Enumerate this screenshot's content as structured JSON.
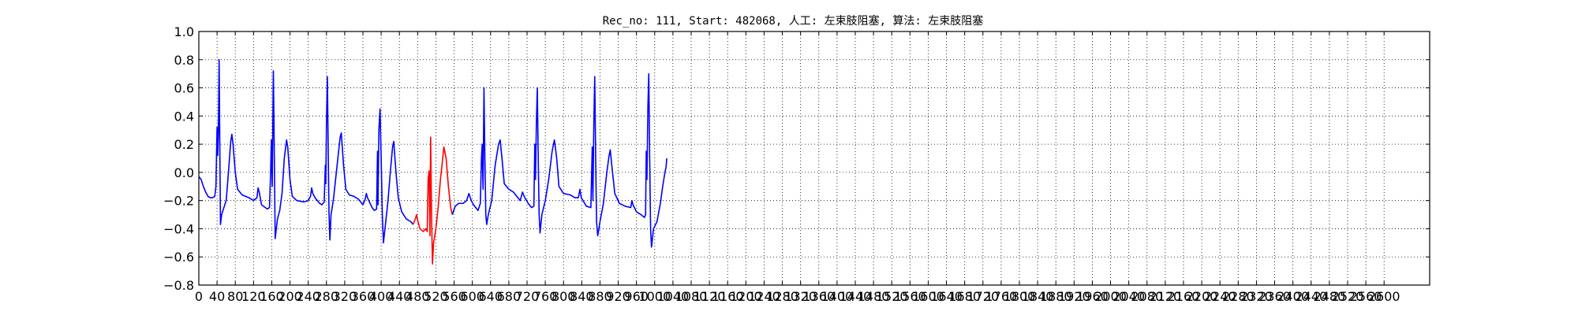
{
  "chart_data": {
    "type": "line",
    "title": "Rec_no: 111, Start: 482068, 人工: 左束肢阻塞, 算法: 左束肢阻塞",
    "xlabel": "",
    "ylabel": "",
    "xlim": [
      0,
      5400
    ],
    "ylim": [
      -0.8,
      1.0
    ],
    "grid": true,
    "yticks": [
      "1.0",
      "0.8",
      "0.6",
      "0.4",
      "0.2",
      "0.0",
      "−0.2",
      "−0.4",
      "−0.6",
      "−0.8"
    ],
    "xticks": [
      "0",
      "40",
      "80",
      "120",
      "160",
      "200",
      "240",
      "280",
      "320",
      "360",
      "400",
      "440",
      "480",
      "520",
      "560",
      "600",
      "640",
      "680",
      "720",
      "760",
      "800",
      "840",
      "880",
      "920",
      "960",
      "1000",
      "1040",
      "1080",
      "1120",
      "1160",
      "1200",
      "1240",
      "1280",
      "1320",
      "1360",
      "1400",
      "1440",
      "1480",
      "1520",
      "1560",
      "1600",
      "1640",
      "1680",
      "1720",
      "1760",
      "1800",
      "1840",
      "1880",
      "1920",
      "1960",
      "2000",
      "2040",
      "2080",
      "2120",
      "2160",
      "2200",
      "2240",
      "2280",
      "2320",
      "2360",
      "2400",
      "2440",
      "2480",
      "2520",
      "2560",
      "2600"
    ],
    "colors": {
      "signal": "#0000ff",
      "highlight": "#ff0000"
    },
    "series": [
      {
        "values": [
          [
            0,
            -0.03
          ],
          [
            10,
            -0.05
          ],
          [
            20,
            -0.1
          ],
          [
            30,
            -0.14
          ],
          [
            40,
            -0.17
          ],
          [
            50,
            -0.18
          ],
          [
            60,
            -0.18
          ],
          [
            70,
            -0.17
          ],
          [
            75,
            -0.1
          ],
          [
            80,
            0.32
          ],
          [
            83,
            0.12
          ],
          [
            86,
            0.3
          ],
          [
            89,
            0.8
          ],
          [
            92,
            0.2
          ],
          [
            95,
            -0.37
          ],
          [
            100,
            -0.3
          ],
          [
            110,
            -0.25
          ],
          [
            120,
            -0.2
          ],
          [
            130,
            0.0
          ],
          [
            140,
            0.22
          ],
          [
            145,
            0.27
          ],
          [
            150,
            0.2
          ],
          [
            160,
            0.0
          ],
          [
            170,
            -0.12
          ],
          [
            190,
            -0.16
          ],
          [
            220,
            -0.18
          ],
          [
            240,
            -0.2
          ],
          [
            255,
            -0.18
          ],
          [
            260,
            -0.11
          ],
          [
            265,
            -0.14
          ],
          [
            275,
            -0.23
          ],
          [
            300,
            -0.26
          ],
          [
            310,
            -0.25
          ],
          [
            315,
            0.0
          ],
          [
            318,
            0.23
          ],
          [
            322,
            -0.1
          ],
          [
            327,
            0.72
          ],
          [
            330,
            0.3
          ],
          [
            335,
            -0.47
          ],
          [
            345,
            -0.33
          ],
          [
            355,
            -0.27
          ],
          [
            365,
            -0.15
          ],
          [
            375,
            0.1
          ],
          [
            385,
            0.23
          ],
          [
            390,
            0.18
          ],
          [
            400,
            -0.05
          ],
          [
            410,
            -0.17
          ],
          [
            430,
            -0.2
          ],
          [
            460,
            -0.21
          ],
          [
            480,
            -0.2
          ],
          [
            490,
            -0.17
          ],
          [
            495,
            -0.11
          ],
          [
            500,
            -0.15
          ],
          [
            510,
            -0.18
          ],
          [
            530,
            -0.22
          ],
          [
            540,
            -0.23
          ],
          [
            550,
            -0.21
          ],
          [
            555,
            0.05
          ],
          [
            557,
            -0.08
          ],
          [
            560,
            0.35
          ],
          [
            564,
            0.68
          ],
          [
            568,
            0.1
          ],
          [
            571,
            -0.28
          ],
          [
            575,
            -0.48
          ],
          [
            580,
            -0.3
          ],
          [
            590,
            -0.2
          ],
          [
            600,
            -0.05
          ],
          [
            610,
            0.1
          ],
          [
            620,
            0.25
          ],
          [
            625,
            0.28
          ],
          [
            635,
            0.05
          ],
          [
            645,
            -0.12
          ],
          [
            660,
            -0.16
          ],
          [
            680,
            -0.17
          ],
          [
            700,
            -0.19
          ],
          [
            720,
            -0.23
          ],
          [
            730,
            -0.19
          ],
          [
            735,
            -0.15
          ],
          [
            740,
            -0.18
          ],
          [
            760,
            -0.25
          ],
          [
            770,
            -0.27
          ],
          [
            780,
            -0.26
          ],
          [
            784,
            0.15
          ],
          [
            786,
            -0.23
          ],
          [
            790,
            0.3
          ],
          [
            795,
            0.45
          ],
          [
            800,
            0.1
          ],
          [
            805,
            -0.3
          ],
          [
            810,
            -0.5
          ],
          [
            820,
            -0.35
          ],
          [
            830,
            -0.2
          ],
          [
            840,
            0.0
          ],
          [
            850,
            0.18
          ],
          [
            855,
            0.22
          ],
          [
            865,
            0.0
          ],
          [
            875,
            -0.18
          ],
          [
            890,
            -0.28
          ],
          [
            910,
            -0.33
          ],
          [
            930,
            -0.35
          ],
          [
            940,
            -0.37
          ]
        ]
      },
      {
        "values": [
          [
            940,
            -0.37
          ],
          [
            950,
            -0.33
          ],
          [
            955,
            -0.3
          ],
          [
            960,
            -0.34
          ],
          [
            970,
            -0.4
          ],
          [
            985,
            -0.42
          ],
          [
            995,
            -0.4
          ],
          [
            1002,
            -0.42
          ],
          [
            1006,
            -0.05
          ],
          [
            1010,
            0.01
          ],
          [
            1014,
            -0.45
          ],
          [
            1017,
            0.25
          ],
          [
            1021,
            -0.3
          ],
          [
            1025,
            -0.65
          ],
          [
            1030,
            -0.5
          ],
          [
            1040,
            -0.4
          ],
          [
            1050,
            -0.25
          ],
          [
            1060,
            -0.05
          ],
          [
            1070,
            0.1
          ],
          [
            1075,
            0.18
          ],
          [
            1085,
            0.1
          ],
          [
            1095,
            -0.1
          ],
          [
            1105,
            -0.25
          ],
          [
            1112,
            -0.3
          ]
        ]
      },
      {
        "values": [
          [
            1112,
            -0.3
          ],
          [
            1125,
            -0.24
          ],
          [
            1140,
            -0.22
          ],
          [
            1160,
            -0.22
          ],
          [
            1175,
            -0.2
          ],
          [
            1185,
            -0.15
          ],
          [
            1195,
            -0.2
          ],
          [
            1205,
            -0.23
          ],
          [
            1225,
            -0.27
          ],
          [
            1235,
            -0.22
          ],
          [
            1240,
            0.1
          ],
          [
            1243,
            0.2
          ],
          [
            1247,
            -0.12
          ],
          [
            1251,
            0.6
          ],
          [
            1255,
            0.1
          ],
          [
            1259,
            -0.3
          ],
          [
            1263,
            -0.37
          ],
          [
            1270,
            -0.3
          ],
          [
            1285,
            -0.2
          ],
          [
            1300,
            0.05
          ],
          [
            1315,
            0.2
          ],
          [
            1322,
            0.23
          ],
          [
            1330,
            0.1
          ],
          [
            1340,
            -0.08
          ],
          [
            1360,
            -0.12
          ],
          [
            1380,
            -0.14
          ],
          [
            1400,
            -0.18
          ],
          [
            1410,
            -0.2
          ],
          [
            1420,
            -0.14
          ],
          [
            1430,
            -0.18
          ],
          [
            1445,
            -0.22
          ],
          [
            1460,
            -0.25
          ],
          [
            1470,
            -0.24
          ],
          [
            1474,
            0.2
          ],
          [
            1477,
            -0.05
          ],
          [
            1481,
            0.35
          ],
          [
            1485,
            0.6
          ],
          [
            1489,
            0.1
          ],
          [
            1493,
            -0.3
          ],
          [
            1497,
            -0.43
          ],
          [
            1505,
            -0.3
          ],
          [
            1520,
            -0.2
          ],
          [
            1535,
            -0.05
          ],
          [
            1550,
            0.15
          ],
          [
            1560,
            0.23
          ],
          [
            1570,
            0.1
          ],
          [
            1580,
            -0.1
          ],
          [
            1600,
            -0.15
          ],
          [
            1630,
            -0.16
          ],
          [
            1650,
            -0.18
          ],
          [
            1665,
            -0.18
          ],
          [
            1672,
            -0.12
          ],
          [
            1678,
            -0.18
          ],
          [
            1700,
            -0.24
          ],
          [
            1720,
            -0.25
          ],
          [
            1726,
            0.18
          ],
          [
            1729,
            -0.2
          ],
          [
            1733,
            0.35
          ],
          [
            1737,
            0.68
          ],
          [
            1741,
            0.1
          ],
          [
            1745,
            -0.35
          ],
          [
            1750,
            -0.45
          ],
          [
            1760,
            -0.35
          ],
          [
            1775,
            -0.22
          ],
          [
            1790,
            0.0
          ],
          [
            1800,
            0.12
          ],
          [
            1805,
            0.16
          ],
          [
            1815,
            0.0
          ],
          [
            1825,
            -0.15
          ],
          [
            1845,
            -0.22
          ],
          [
            1870,
            -0.24
          ],
          [
            1895,
            -0.25
          ],
          [
            1900,
            -0.2
          ],
          [
            1905,
            -0.23
          ],
          [
            1920,
            -0.28
          ],
          [
            1940,
            -0.3
          ],
          [
            1955,
            -0.32
          ],
          [
            1960,
            -0.3
          ],
          [
            1963,
            0.15
          ],
          [
            1966,
            -0.05
          ],
          [
            1970,
            0.45
          ],
          [
            1974,
            0.7
          ],
          [
            1978,
            0.1
          ],
          [
            1982,
            -0.4
          ],
          [
            1986,
            -0.53
          ],
          [
            1995,
            -0.4
          ],
          [
            2010,
            -0.35
          ],
          [
            2025,
            -0.22
          ],
          [
            2035,
            -0.1
          ],
          [
            2045,
            0.0
          ],
          [
            2050,
            0.04
          ],
          [
            2053,
            0.1
          ]
        ]
      }
    ]
  }
}
